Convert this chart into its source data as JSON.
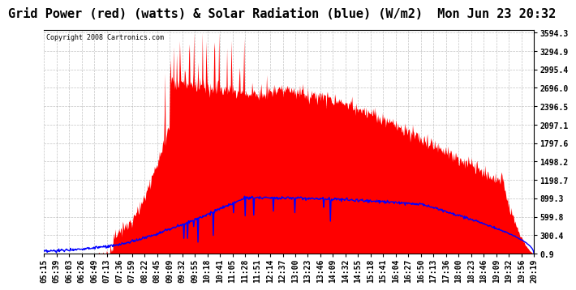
{
  "title": "Grid Power (red) (watts) & Solar Radiation (blue) (W/m2)  Mon Jun 23 20:32",
  "copyright": "Copyright 2008 Cartronics.com",
  "background_color": "#ffffff",
  "plot_bg_color": "#ffffff",
  "yticks": [
    0.9,
    300.4,
    599.8,
    899.3,
    1198.7,
    1498.2,
    1797.6,
    2097.1,
    2396.5,
    2696.0,
    2995.4,
    3294.9,
    3594.3
  ],
  "ymin": 0.9,
  "ymax": 3594.3,
  "x_labels": [
    "05:15",
    "05:39",
    "06:03",
    "06:26",
    "06:49",
    "07:13",
    "07:36",
    "07:59",
    "08:22",
    "08:45",
    "09:09",
    "09:32",
    "09:55",
    "10:18",
    "10:41",
    "11:05",
    "11:28",
    "11:51",
    "12:14",
    "12:37",
    "13:00",
    "13:23",
    "13:46",
    "14:09",
    "14:32",
    "14:55",
    "15:18",
    "15:41",
    "16:04",
    "16:27",
    "16:50",
    "17:13",
    "17:36",
    "18:00",
    "18:23",
    "18:46",
    "19:09",
    "19:32",
    "19:56",
    "20:19"
  ],
  "grid_color": "#aaaaaa",
  "red_color": "#ff0000",
  "blue_color": "#0000ff",
  "title_fontsize": 11,
  "tick_fontsize": 7.0
}
